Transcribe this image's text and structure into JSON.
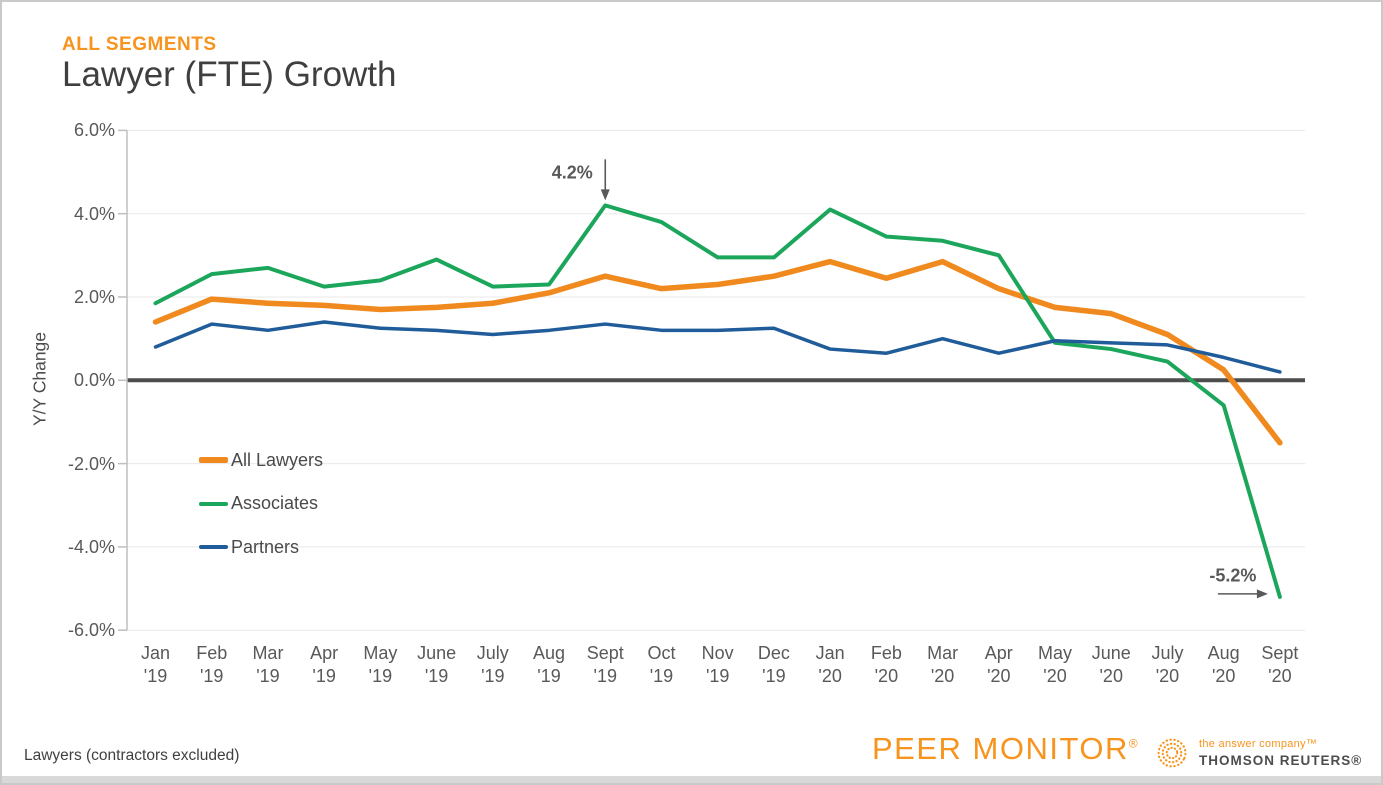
{
  "header": {
    "eyebrow": "ALL SEGMENTS",
    "title": "Lawyer (FTE) Growth"
  },
  "chart_data": {
    "type": "line",
    "title": "Lawyer (FTE) Growth",
    "xlabel": "",
    "ylabel": "Y/Y Change",
    "ylim": [
      -6,
      6
    ],
    "ytick_values": [
      6,
      4,
      2,
      0,
      -2,
      -4,
      -6
    ],
    "ytick_labels": [
      "6.0%",
      "4.0%",
      "2.0%",
      "0.0%",
      "-2.0%",
      "-4.0%",
      "-6.0%"
    ],
    "grid": true,
    "zero_line": true,
    "legend_position": "inside-left",
    "categories": [
      "Jan '19",
      "Feb '19",
      "Mar '19",
      "Apr '19",
      "May '19",
      "June '19",
      "July '19",
      "Aug '19",
      "Sept '19",
      "Oct '19",
      "Nov '19",
      "Dec '19",
      "Jan '20",
      "Feb '20",
      "Mar '20",
      "Apr '20",
      "May '20",
      "June '20",
      "July '20",
      "Aug '20",
      "Sept '20"
    ],
    "series": [
      {
        "name": "All Lawyers",
        "color": "#f08a1e",
        "stroke_width": 5.5,
        "values": [
          1.4,
          1.95,
          1.85,
          1.8,
          1.7,
          1.75,
          1.85,
          2.1,
          2.5,
          2.2,
          2.3,
          2.5,
          2.85,
          2.45,
          2.85,
          2.2,
          1.75,
          1.6,
          1.1,
          0.25,
          -1.5
        ]
      },
      {
        "name": "Associates",
        "color": "#1ca65b",
        "stroke_width": 4,
        "values": [
          1.85,
          2.55,
          2.7,
          2.25,
          2.4,
          2.9,
          2.25,
          2.3,
          4.2,
          3.8,
          2.95,
          2.95,
          4.1,
          3.45,
          3.35,
          3.0,
          0.9,
          0.75,
          0.45,
          -0.6,
          -5.2
        ]
      },
      {
        "name": "Partners",
        "color": "#1f5c99",
        "stroke_width": 3.5,
        "values": [
          0.8,
          1.35,
          1.2,
          1.4,
          1.25,
          1.2,
          1.1,
          1.2,
          1.35,
          1.2,
          1.2,
          1.25,
          0.75,
          0.65,
          1.0,
          0.65,
          0.95,
          0.9,
          0.85,
          0.55,
          0.2
        ]
      }
    ],
    "annotations": [
      {
        "text": "4.2%",
        "series": "Associates",
        "category": "Sept '19",
        "arrow": "down"
      },
      {
        "text": "-5.2%",
        "series": "Associates",
        "category": "Sept '20",
        "arrow": "right"
      }
    ]
  },
  "footer": {
    "note": "Lawyers (contractors excluded)",
    "peer_monitor": "PEER MONITOR",
    "peer_monitor_reg": "®",
    "tr_tagline": "the answer company™",
    "tr_name": "THOMSON REUTERS®"
  },
  "colors": {
    "accent_orange": "#f7941e",
    "grid": "#e8e8e8",
    "zero_line": "#4d4d4d",
    "axis": "#bfbfbf",
    "text_gray": "#595959",
    "annotation": "#58595b"
  }
}
